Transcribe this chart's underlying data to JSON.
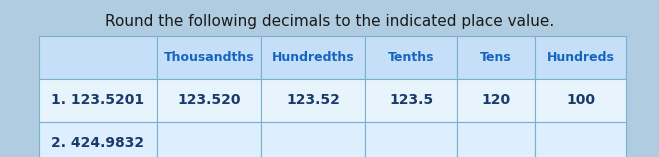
{
  "title": "Round the following decimals to the indicated place value.",
  "title_fontsize": 11,
  "title_color": "#1a1a1a",
  "columns": [
    "",
    "Thousandths",
    "Hundredths",
    "Tenths",
    "Tens",
    "Hundreds"
  ],
  "col_header_color": "#c5dff8",
  "row_data": [
    [
      "1. 123.5201",
      "123.520",
      "123.52",
      "123.5",
      "120",
      "100"
    ],
    [
      "2. 424.9832",
      "",
      "",
      "",
      "",
      ""
    ]
  ],
  "row_colors": [
    "#e8f4fc",
    "#ddeeff"
  ],
  "header_text_color": "#1565c0",
  "data_text_color": "#1a3a6b",
  "header_font_weight": "bold",
  "data_font_weight": "bold",
  "bg_color": "#a8c8e8",
  "outer_bg_color": "#b8d4ec",
  "fig_bg_color": "#b0cce0"
}
